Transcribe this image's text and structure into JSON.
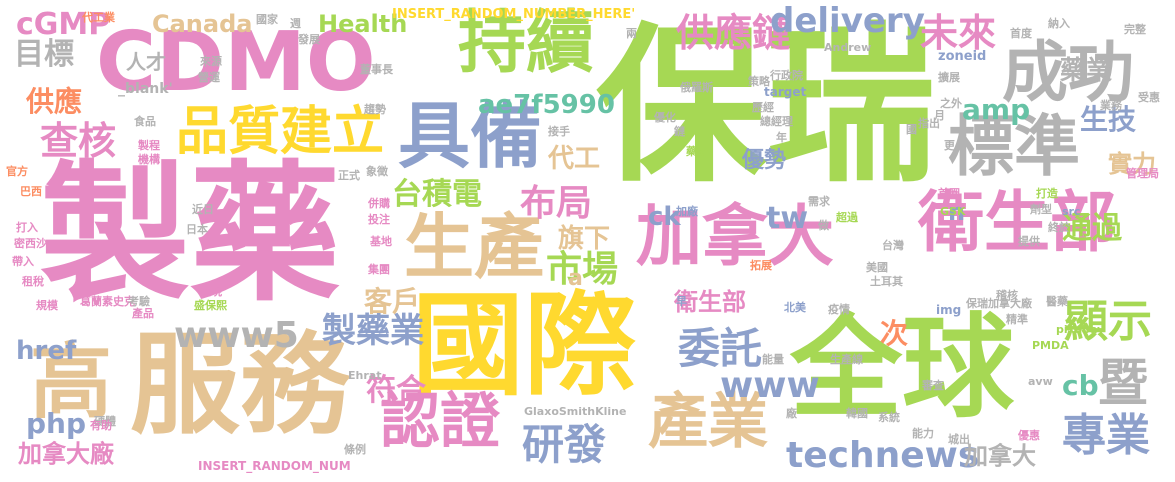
{
  "colors": {
    "pink": "#e68ac3",
    "green": "#a6d854",
    "yellow": "#ffd92f",
    "tan": "#e5c494",
    "blue": "#8da0cb",
    "teal": "#66c2a5",
    "orange": "#fc8d62",
    "grey": "#b3b3b3"
  },
  "words": [
    {
      "id": "baorui",
      "text": "保瑞"
    },
    {
      "id": "zhiyao",
      "text": "製藥"
    },
    {
      "id": "guoji",
      "text": "國際"
    },
    {
      "id": "quanqiu",
      "text": "全球"
    },
    {
      "id": "fuwu",
      "text": "服務"
    },
    {
      "id": "gao",
      "text": "高"
    },
    {
      "id": "cdmo",
      "text": "CDMO"
    },
    {
      "id": "chixu",
      "text": "持續"
    },
    {
      "id": "chenggong",
      "text": "成功"
    },
    {
      "id": "biaozhun",
      "text": "標準"
    },
    {
      "id": "weishengbu",
      "text": "衛生部"
    },
    {
      "id": "jianada",
      "text": "加拿大"
    },
    {
      "id": "jubei",
      "text": "具備"
    },
    {
      "id": "pinzhi",
      "text": "品質建立"
    },
    {
      "id": "shengchan",
      "text": "生產"
    },
    {
      "id": "renzheng",
      "text": "認證"
    },
    {
      "id": "chanye",
      "text": "產業"
    },
    {
      "id": "yanfa",
      "text": "研發"
    },
    {
      "id": "weituo",
      "text": "委託"
    },
    {
      "id": "gongyinglian",
      "text": "供應鏈"
    },
    {
      "id": "weilai",
      "text": "未來"
    },
    {
      "id": "delivery",
      "text": "delivery"
    },
    {
      "id": "zhuanye",
      "text": "專業"
    },
    {
      "id": "xianshi",
      "text": "顯示"
    },
    {
      "id": "ji",
      "text": "暨"
    },
    {
      "id": "technews",
      "text": "technews"
    },
    {
      "id": "www5",
      "text": "www5"
    },
    {
      "id": "www",
      "text": "www"
    },
    {
      "id": "zhiyaoye",
      "text": "製藥業"
    },
    {
      "id": "taijidian",
      "text": "台積電"
    },
    {
      "id": "shichang",
      "text": "市場"
    },
    {
      "id": "buju",
      "text": "布局"
    },
    {
      "id": "kehu",
      "text": "客戶"
    },
    {
      "id": "chahe",
      "text": "查核"
    },
    {
      "id": "mubiao",
      "text": "目標"
    },
    {
      "id": "gongying",
      "text": "供應"
    },
    {
      "id": "cgmp",
      "text": "cGMP"
    },
    {
      "id": "canada",
      "text": "Canada"
    },
    {
      "id": "health",
      "text": "Health"
    },
    {
      "id": "ae7f",
      "text": "ae7f5990"
    },
    {
      "id": "amp",
      "text": "amp"
    },
    {
      "id": "shengji",
      "text": "生技"
    },
    {
      "id": "yaoye",
      "text": "藥業"
    },
    {
      "id": "daigong",
      "text": "代工"
    },
    {
      "id": "tw",
      "text": "tw"
    },
    {
      "id": "youshi",
      "text": "優勢"
    },
    {
      "id": "shili",
      "text": "實力"
    },
    {
      "id": "tongguo",
      "text": "通過"
    },
    {
      "id": "qixia",
      "text": "旗下"
    },
    {
      "id": "fuhe",
      "text": "符合"
    },
    {
      "id": "php",
      "text": "php"
    },
    {
      "id": "href",
      "text": "href"
    },
    {
      "id": "cb",
      "text": "cb"
    },
    {
      "id": "jianadachang",
      "text": "加拿大廠"
    },
    {
      "id": "jianada2",
      "text": "加拿大"
    },
    {
      "id": "weishengbu2",
      "text": "衛生部"
    },
    {
      "id": "ci",
      "text": "次"
    },
    {
      "id": "ck",
      "text": "ck"
    },
    {
      "id": "a",
      "text": "a"
    },
    {
      "id": "n",
      "text": "n"
    },
    {
      "id": "rencai",
      "text": "人才"
    },
    {
      "id": "blank",
      "text": "_blank'"
    },
    {
      "id": "insert1",
      "text": "INSERT_RANDOM_NUMBER_HERE'"
    },
    {
      "id": "insert2",
      "text": "INSERT_RANDOM_NUM"
    },
    {
      "id": "glaxo",
      "text": "GlaxoSmithKline"
    },
    {
      "id": "andrew",
      "text": "Andrew"
    },
    {
      "id": "zoneid",
      "text": "zoneid"
    },
    {
      "id": "target",
      "text": "target"
    },
    {
      "id": "src",
      "text": "src"
    },
    {
      "id": "img",
      "text": "img"
    },
    {
      "id": "avw",
      "text": "avw"
    },
    {
      "id": "pmda",
      "text": "PMDA"
    },
    {
      "id": "pixabay",
      "text": "pixabay"
    },
    {
      "id": "ehrat",
      "text": "Ehrat"
    },
    {
      "id": "gsk",
      "text": "GSK"
    },
    {
      "id": "daigongye",
      "text": "代工業"
    },
    {
      "id": "guojia",
      "text": "國家"
    },
    {
      "id": "zhou",
      "text": "週"
    },
    {
      "id": "fazhan",
      "text": "發展"
    },
    {
      "id": "laiyuan",
      "text": "來源"
    },
    {
      "id": "yingyun",
      "text": "營運"
    },
    {
      "id": "dongshizhang",
      "text": "董事長"
    },
    {
      "id": "liang",
      "text": "兩"
    },
    {
      "id": "eluosi",
      "text": "俄羅斯"
    },
    {
      "id": "celue",
      "text": "策略"
    },
    {
      "id": "xingzhengyuan",
      "text": "行政院"
    },
    {
      "id": "shoudu",
      "text": "首度"
    },
    {
      "id": "naru",
      "text": "納入"
    },
    {
      "id": "wanzheng",
      "text": "完整"
    },
    {
      "id": "kuozhan",
      "text": "擴展"
    },
    {
      "id": "yue",
      "text": "月"
    },
    {
      "id": "shouhui",
      "text": "受惠"
    },
    {
      "id": "zhiwai",
      "text": "之外"
    },
    {
      "id": "yewu",
      "text": "業務"
    },
    {
      "id": "zongjingli",
      "text": "總經理"
    },
    {
      "id": "lijing",
      "text": "歷經"
    },
    {
      "id": "qushi",
      "text": "趨勢"
    },
    {
      "id": "shipin",
      "text": "食品"
    },
    {
      "id": "zhicheng",
      "text": "製程"
    },
    {
      "id": "jigou",
      "text": "機構"
    },
    {
      "id": "guanfang",
      "text": "官方"
    },
    {
      "id": "baxi",
      "text": "巴西"
    },
    {
      "id": "jiesou",
      "text": "接手"
    },
    {
      "id": "youhua",
      "text": "優化"
    },
    {
      "id": "lian",
      "text": "鏈"
    },
    {
      "id": "yaowu",
      "text": "藥物"
    },
    {
      "id": "xiangzheng",
      "text": "象徵"
    },
    {
      "id": "zhengshi",
      "text": "正式"
    },
    {
      "id": "jinri",
      "text": "近日"
    },
    {
      "id": "daru",
      "text": "打入"
    },
    {
      "id": "mixixi",
      "text": "密西沙"
    },
    {
      "id": "dairu",
      "text": "帶入"
    },
    {
      "id": "zushui",
      "text": "租稅"
    },
    {
      "id": "riben",
      "text": "日本"
    },
    {
      "id": "binggou",
      "text": "併購"
    },
    {
      "id": "touzi",
      "text": "投注"
    },
    {
      "id": "jidi",
      "text": "基地"
    },
    {
      "id": "jituan",
      "text": "集團"
    },
    {
      "id": "zhanxian",
      "text": "展現"
    },
    {
      "id": "guimo",
      "text": "規模"
    },
    {
      "id": "geleisu",
      "text": "葛蘭素史克"
    },
    {
      "id": "kaoyan",
      "text": "考驗"
    },
    {
      "id": "shengbaoxi",
      "text": "盛保熙"
    },
    {
      "id": "chanpin",
      "text": "產品"
    },
    {
      "id": "yingti",
      "text": "硬體"
    },
    {
      "id": "youzhu",
      "text": "有助"
    },
    {
      "id": "tiaoli",
      "text": "條例"
    },
    {
      "id": "jiachang",
      "text": "加廠"
    },
    {
      "id": "xuqiu",
      "text": "需求"
    },
    {
      "id": "zuo",
      "text": "做"
    },
    {
      "id": "chaoyue",
      "text": "超過"
    },
    {
      "id": "taiwan",
      "text": "台灣"
    },
    {
      "id": "tuozhan",
      "text": "拓展"
    },
    {
      "id": "meiguo",
      "text": "美國"
    },
    {
      "id": "tuerqi",
      "text": "土耳其"
    },
    {
      "id": "zao",
      "text": "早"
    },
    {
      "id": "beimei",
      "text": "北美"
    },
    {
      "id": "yiqing",
      "text": "疫情"
    },
    {
      "id": "shengchanxian",
      "text": "生產線"
    },
    {
      "id": "nengliang",
      "text": "能量"
    },
    {
      "id": "chang",
      "text": "廠"
    },
    {
      "id": "hanguo",
      "text": "韓國"
    },
    {
      "id": "xitong",
      "text": "系統"
    },
    {
      "id": "shencha",
      "text": "審查"
    },
    {
      "id": "nengli",
      "text": "能力"
    },
    {
      "id": "chengchu",
      "text": "城出"
    },
    {
      "id": "youhui",
      "text": "優惠"
    },
    {
      "id": "baoruijianadachang",
      "text": "保瑞加拿大廠"
    },
    {
      "id": "jingzhun",
      "text": "精準"
    },
    {
      "id": "jiguan",
      "text": "稽核"
    },
    {
      "id": "yiyao",
      "text": "醫藥"
    },
    {
      "id": "zhongyu",
      "text": "終於"
    },
    {
      "id": "tigong",
      "text": "提供"
    },
    {
      "id": "jixing",
      "text": "劑型"
    },
    {
      "id": "guanliju",
      "text": "管理局"
    },
    {
      "id": "dazao",
      "text": "打造"
    },
    {
      "id": "shouping",
      "text": "首圈"
    },
    {
      "id": "geng",
      "text": "更"
    },
    {
      "id": "zhichu",
      "text": "指出"
    },
    {
      "id": "nian",
      "text": "年"
    },
    {
      "id": "guo",
      "text": "國"
    }
  ]
}
